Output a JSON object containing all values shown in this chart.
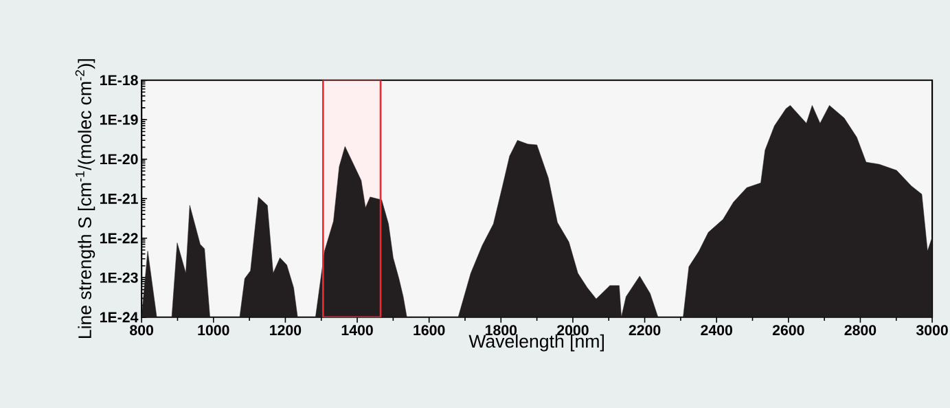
{
  "chart_data": {
    "type": "area",
    "xlabel": "Wavelength [nm]",
    "ylabel": "Line strength S [cm$^{-1}$/(molec cm$^{-2}$)]",
    "log": "y",
    "color": "#231f20",
    "x": [
      800,
      817,
      842,
      884,
      899,
      923,
      934,
      963,
      975,
      990,
      1073,
      1087,
      1103,
      1125,
      1150,
      1166,
      1185,
      1204,
      1223,
      1234,
      1284,
      1309,
      1334,
      1350,
      1366,
      1411,
      1423,
      1436,
      1468,
      1487,
      1500,
      1516,
      1528,
      1538,
      1681,
      1716,
      1748,
      1779,
      1805,
      1824,
      1846,
      1875,
      1900,
      1932,
      1957,
      1989,
      2014,
      2040,
      2065,
      2103,
      2129,
      2135,
      2148,
      2186,
      2215,
      2237,
      2307,
      2323,
      2351,
      2377,
      2418,
      2447,
      2484,
      2523,
      2535,
      2561,
      2593,
      2605,
      2650,
      2666,
      2688,
      2714,
      2755,
      2790,
      2816,
      2853,
      2901,
      2942,
      2971,
      2987,
      2999
    ],
    "values": [
      1e-24,
      4.7e-23,
      1e-24,
      1e-24,
      7.6e-23,
      1.3e-23,
      6.8e-22,
      7e-23,
      5.4e-23,
      1e-24,
      1e-24,
      9.5e-24,
      1.5e-23,
      1.1e-21,
      6.8e-22,
      1.3e-23,
      3.2e-23,
      2.1e-23,
      5.6e-24,
      1e-24,
      1e-24,
      4.7e-23,
      2.7e-22,
      6.5e-21,
      2.1e-20,
      2.9e-21,
      5.9e-22,
      1.1e-21,
      9.3e-22,
      2.3e-22,
      3.2e-23,
      9.5e-24,
      3.3e-24,
      1e-24,
      1e-24,
      1.3e-23,
      6.6e-23,
      2.3e-22,
      2.2e-21,
      1.2e-20,
      3e-20,
      2.4e-20,
      2.3e-20,
      3.3e-21,
      2.5e-22,
      8e-23,
      1.3e-23,
      5.6e-24,
      2.9e-24,
      6.3e-24,
      6.3e-24,
      1e-24,
      3.3e-24,
      1.1e-23,
      4e-24,
      1e-24,
      1e-24,
      1.9e-23,
      4.7e-23,
      1.4e-22,
      3e-22,
      8.2e-22,
      1.9e-21,
      2.5e-21,
      1.7e-20,
      7e-20,
      1.9e-19,
      2.3e-19,
      8.1e-20,
      2.3e-19,
      8.1e-20,
      2.3e-19,
      1.1e-19,
      3.6e-20,
      8.4e-21,
      7.4e-21,
      5.2e-21,
      2.1e-21,
      1.3e-21,
      4.7e-23,
      1e-22
    ],
    "xlim": [
      800,
      3000
    ],
    "ylim": [
      1e-24,
      1e-18
    ],
    "xticks": [
      800,
      1000,
      1200,
      1400,
      1600,
      1800,
      2000,
      2200,
      2400,
      2600,
      2800,
      3000
    ],
    "yticks": [
      {
        "value": 1e-24,
        "label": "1E-24"
      },
      {
        "value": 1e-23,
        "label": "1E-23"
      },
      {
        "value": 1e-22,
        "label": "1E-22"
      },
      {
        "value": 1e-21,
        "label": "1E-21"
      },
      {
        "value": 1e-20,
        "label": "1E-20"
      },
      {
        "value": 1e-19,
        "label": "1E-19"
      },
      {
        "value": 1e-18,
        "label": "1E-18"
      }
    ],
    "bands": [
      {
        "axis": "x",
        "from": 1305,
        "to": 1465
      }
    ]
  }
}
